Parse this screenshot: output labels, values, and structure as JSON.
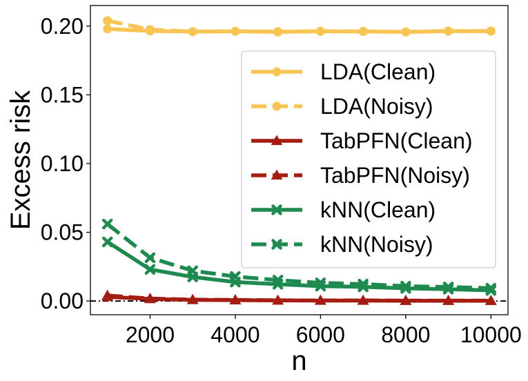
{
  "chart_data": {
    "type": "line",
    "title": "",
    "xlabel": "n",
    "ylabel": "Excess risk",
    "xlim": [
      600,
      10400
    ],
    "ylim": [
      -0.01,
      0.215
    ],
    "xticks": [
      2000,
      4000,
      6000,
      8000,
      10000
    ],
    "xtick_labels": [
      "2000",
      "4000",
      "6000",
      "8000",
      "10000"
    ],
    "yticks": [
      0.0,
      0.05,
      0.1,
      0.15,
      0.2
    ],
    "ytick_labels": [
      "0.00",
      "0.05",
      "0.10",
      "0.15",
      "0.20"
    ],
    "grid": false,
    "legend_position": "center-right",
    "reference_line": {
      "y": 0,
      "style": "dash-dot",
      "color": "#000000"
    },
    "x": [
      1000,
      2000,
      3000,
      4000,
      5000,
      6000,
      7000,
      8000,
      9000,
      10000
    ],
    "series": [
      {
        "name": "LDA(Clean)",
        "color": "#F8C555",
        "dash": "solid",
        "marker": "circle",
        "values": [
          0.198,
          0.1965,
          0.196,
          0.1962,
          0.1958,
          0.1962,
          0.1961,
          0.1958,
          0.1963,
          0.1963
        ]
      },
      {
        "name": "LDA(Noisy)",
        "color": "#F8C555",
        "dash": "dashed",
        "marker": "circle",
        "values": [
          0.204,
          0.1975,
          0.196,
          0.1963,
          0.196,
          0.1963,
          0.1962,
          0.1958,
          0.1965,
          0.1965
        ]
      },
      {
        "name": "TabPFN(Clean)",
        "color": "#A51C13",
        "dash": "solid",
        "marker": "triangle",
        "values": [
          0.003,
          0.0015,
          0.0008,
          0.0006,
          0.0004,
          0.0003,
          0.0003,
          0.0002,
          0.0002,
          0.0002
        ]
      },
      {
        "name": "TabPFN(Noisy)",
        "color": "#A51C13",
        "dash": "dashed",
        "marker": "triangle",
        "values": [
          0.004,
          0.0018,
          0.001,
          0.0008,
          0.0005,
          0.0004,
          0.0004,
          0.0003,
          0.0003,
          0.0003
        ]
      },
      {
        "name": "kNN(Clean)",
        "color": "#1E8A50",
        "dash": "solid",
        "marker": "x",
        "values": [
          0.043,
          0.023,
          0.0175,
          0.0138,
          0.0122,
          0.0108,
          0.0103,
          0.0092,
          0.0086,
          0.0077
        ]
      },
      {
        "name": "kNN(Noisy)",
        "color": "#1E8A50",
        "dash": "dashed",
        "marker": "x",
        "values": [
          0.056,
          0.0315,
          0.022,
          0.0178,
          0.0152,
          0.0132,
          0.0123,
          0.0108,
          0.0102,
          0.0093
        ]
      }
    ]
  }
}
